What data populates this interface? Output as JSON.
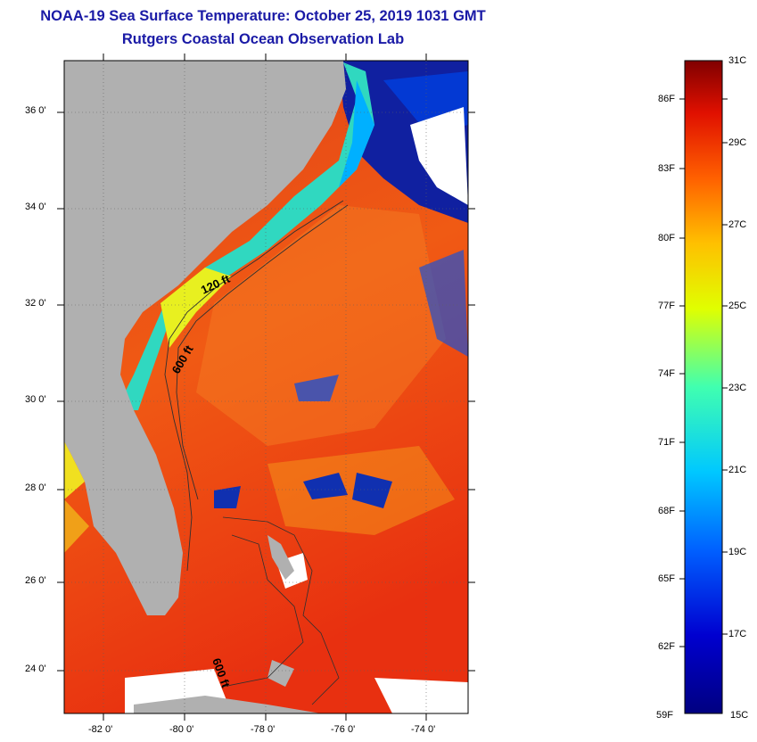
{
  "header": {
    "title": "NOAA-19 Sea Surface Temperature:  October 25, 2019 1031 GMT",
    "subtitle": "Rutgers Coastal Ocean Observation Lab"
  },
  "map": {
    "lat_labels": [
      "36 0'",
      "34 0'",
      "32 0'",
      "30 0'",
      "28 0'",
      "26 0'",
      "24 0'"
    ],
    "lon_labels": [
      "-82 0'",
      "-80 0'",
      "-78 0'",
      "-76 0'",
      "-74 0'"
    ],
    "contour_labels": [
      "120 ft",
      "600 ft",
      "600 ft"
    ],
    "colors": {
      "land": "#b0b0b0",
      "cloud": "#ffffff",
      "warm_water": "#f04a10",
      "cool_shelf": "#20d0e0",
      "cold_patch": "#1020a0"
    }
  },
  "colorbar": {
    "fahrenheit_labels": [
      "86F",
      "83F",
      "80F",
      "77F",
      "74F",
      "71F",
      "68F",
      "65F",
      "62F",
      "59F"
    ],
    "celsius_labels": [
      "31C",
      "29C",
      "27C",
      "25C",
      "23C",
      "21C",
      "19C",
      "17C",
      "15C"
    ],
    "range_c": [
      15,
      31
    ],
    "range_f": [
      59,
      88
    ]
  }
}
